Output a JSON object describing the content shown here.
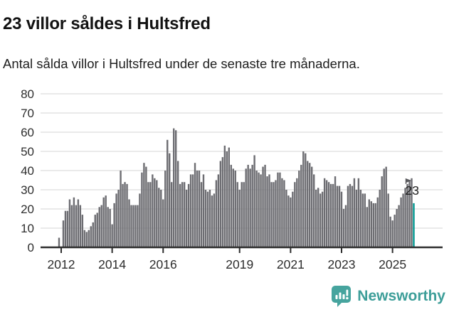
{
  "header": {
    "title": "23 villor såldes i Hultsfred",
    "subtitle": "Antal sålda villor i Hultsfred under de senaste tre månaderna."
  },
  "chart_data": {
    "type": "bar",
    "title": "23 villor såldes i Hultsfred",
    "subtitle": "Antal sålda villor i Hultsfred under de senaste tre månaderna.",
    "xlabel": "",
    "ylabel": "",
    "ylim": [
      0,
      80
    ],
    "yticks": [
      0,
      10,
      20,
      30,
      40,
      50,
      60,
      70,
      80
    ],
    "grid": "horizontal",
    "legend": "none",
    "frequency": "monthly",
    "start": "2011-12",
    "values": [
      5,
      0,
      14,
      19,
      19,
      25,
      22,
      26,
      22,
      25,
      22,
      17,
      9,
      8,
      9,
      11,
      13,
      17,
      18,
      21,
      22,
      26,
      27,
      21,
      20,
      12,
      23,
      28,
      30,
      40,
      33,
      34,
      33,
      25,
      22,
      22,
      22,
      22,
      28,
      39,
      44,
      42,
      34,
      34,
      38,
      36,
      35,
      31,
      30,
      25,
      40,
      56,
      49,
      34,
      62,
      61,
      45,
      33,
      34,
      34,
      30,
      33,
      38,
      38,
      44,
      40,
      40,
      34,
      38,
      30,
      29,
      30,
      27,
      28,
      35,
      38,
      45,
      47,
      53,
      50,
      52,
      43,
      41,
      40,
      34,
      30,
      34,
      34,
      41,
      43,
      41,
      43,
      48,
      40,
      39,
      38,
      42,
      43,
      37,
      38,
      34,
      34,
      35,
      39,
      39,
      36,
      35,
      30,
      27,
      26,
      29,
      34,
      36,
      40,
      43,
      50,
      49,
      45,
      44,
      42,
      38,
      30,
      31,
      28,
      29,
      36,
      35,
      34,
      33,
      33,
      37,
      32,
      32,
      29,
      20,
      22,
      32,
      33,
      32,
      36,
      30,
      36,
      30,
      28,
      28,
      21,
      25,
      24,
      23,
      23,
      26,
      30,
      37,
      41,
      42,
      28,
      16,
      14,
      17,
      20,
      22,
      26,
      28,
      31,
      33,
      35,
      36,
      23
    ],
    "xticks": [
      {
        "label": "2012",
        "month_index": 1
      },
      {
        "label": "2014",
        "month_index": 25
      },
      {
        "label": "2016",
        "month_index": 49
      },
      {
        "label": "2019",
        "month_index": 85
      },
      {
        "label": "2021",
        "month_index": 109
      },
      {
        "label": "2023",
        "month_index": 133
      },
      {
        "label": "2025",
        "month_index": 157
      }
    ],
    "highlight_last": true,
    "annotation": {
      "label": "23",
      "marker": "flag-icon"
    },
    "colors": {
      "bar": "#6d6d72",
      "highlight": "#00968f",
      "grid": "#e4e4e4",
      "axis": "#2d2d2d",
      "text": "#2d2d2d"
    }
  },
  "footer": {
    "brand": "Newsworthy",
    "brand_color": "#3d9e99",
    "icon_color": "#46a49e"
  }
}
